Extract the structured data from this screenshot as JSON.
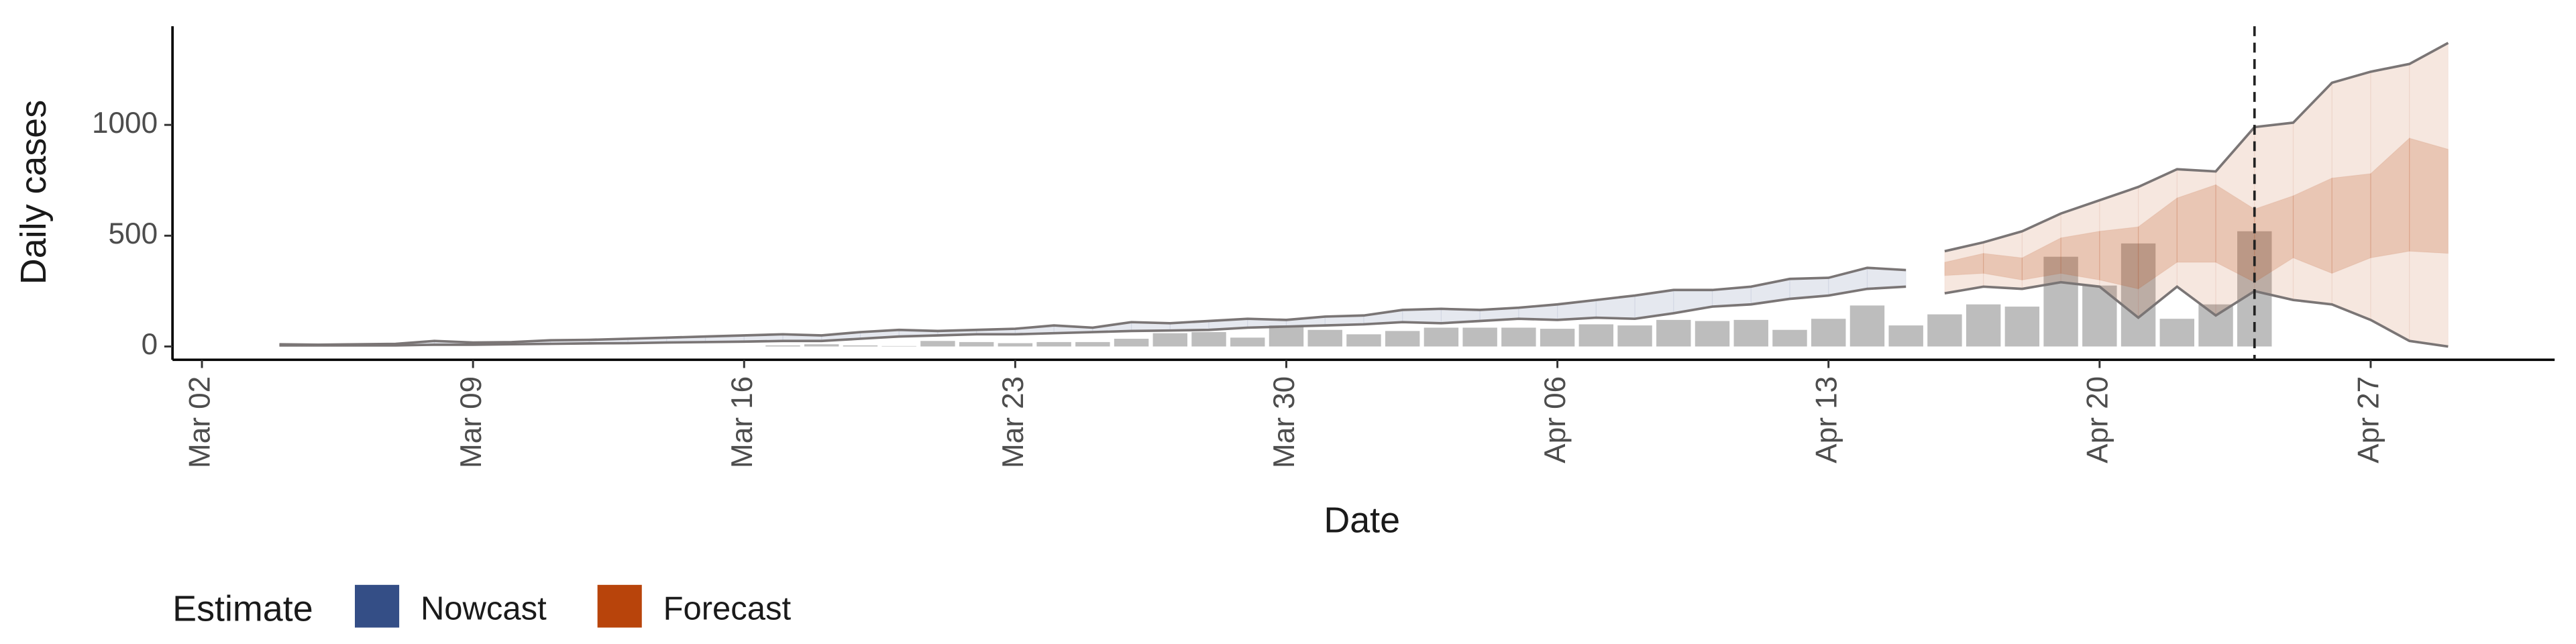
{
  "chart_data": {
    "type": "nowcast",
    "x_label": "Date",
    "y_label": "Daily cases",
    "legend_title": "Estimate",
    "dates": [
      "Mar 02",
      "Mar 03",
      "Mar 04",
      "Mar 05",
      "Mar 06",
      "Mar 07",
      "Mar 08",
      "Mar 09",
      "Mar 10",
      "Mar 11",
      "Mar 12",
      "Mar 13",
      "Mar 14",
      "Mar 15",
      "Mar 16",
      "Mar 17",
      "Mar 18",
      "Mar 19",
      "Mar 20",
      "Mar 21",
      "Mar 22",
      "Mar 23",
      "Mar 24",
      "Mar 25",
      "Mar 26",
      "Mar 27",
      "Mar 28",
      "Mar 29",
      "Mar 30",
      "Mar 31",
      "Apr 01",
      "Apr 02",
      "Apr 03",
      "Apr 04",
      "Apr 05",
      "Apr 06",
      "Apr 07",
      "Apr 08",
      "Apr 09",
      "Apr 10",
      "Apr 11",
      "Apr 12",
      "Apr 13",
      "Apr 14",
      "Apr 15",
      "Apr 16",
      "Apr 17",
      "Apr 18",
      "Apr 19",
      "Apr 20",
      "Apr 21",
      "Apr 22",
      "Apr 23",
      "Apr 24",
      "Apr 25",
      "Apr 26",
      "Apr 27",
      "Apr 28",
      "Apr 29"
    ],
    "xticks": [
      "Mar 02",
      "Mar 09",
      "Mar 16",
      "Mar 23",
      "Mar 30",
      "Apr 06",
      "Apr 13",
      "Apr 20",
      "Apr 27"
    ],
    "ylim": [
      -60,
      1445
    ],
    "yticks": [
      0,
      500,
      1000
    ],
    "vline": "Apr 24",
    "cases": {
      "color": "#bdbdbd",
      "values": [
        null,
        null,
        null,
        null,
        null,
        null,
        null,
        null,
        null,
        null,
        null,
        null,
        null,
        null,
        null,
        5,
        10,
        5,
        2,
        25,
        20,
        15,
        20,
        20,
        35,
        60,
        65,
        40,
        95,
        75,
        55,
        70,
        85,
        85,
        85,
        80,
        100,
        95,
        120,
        115,
        120,
        75,
        125,
        185,
        95,
        145,
        190,
        180,
        405,
        275,
        465,
        125,
        190,
        520,
        null,
        null,
        null,
        null,
        null
      ]
    },
    "series": [
      {
        "name": "Nowcast",
        "color": "#344e86",
        "lower_90": [
          null,
          null,
          5,
          5,
          5,
          5,
          8,
          8,
          10,
          12,
          14,
          15,
          18,
          20,
          22,
          25,
          25,
          35,
          45,
          50,
          55,
          55,
          60,
          65,
          70,
          72,
          75,
          85,
          90,
          95,
          100,
          110,
          105,
          115,
          125,
          120,
          130,
          125,
          150,
          180,
          190,
          215,
          230,
          260,
          270,
          null,
          null,
          null,
          null,
          null,
          null,
          null,
          null,
          null,
          null,
          null,
          null,
          null,
          null
        ],
        "upper_90": [
          null,
          null,
          10,
          8,
          10,
          12,
          25,
          18,
          20,
          28,
          30,
          35,
          40,
          45,
          50,
          55,
          50,
          65,
          75,
          70,
          75,
          80,
          95,
          85,
          110,
          105,
          115,
          125,
          120,
          135,
          140,
          165,
          170,
          165,
          175,
          190,
          210,
          230,
          255,
          255,
          270,
          305,
          310,
          355,
          345,
          null,
          null,
          null,
          null,
          null,
          null,
          null,
          null,
          null,
          null,
          null,
          null,
          null,
          null
        ]
      },
      {
        "name": "Forecast",
        "color": "#b8440b",
        "lower_90": [
          null,
          null,
          null,
          null,
          null,
          null,
          null,
          null,
          null,
          null,
          null,
          null,
          null,
          null,
          null,
          null,
          null,
          null,
          null,
          null,
          null,
          null,
          null,
          null,
          null,
          null,
          null,
          null,
          null,
          null,
          null,
          null,
          null,
          null,
          null,
          null,
          null,
          null,
          null,
          null,
          null,
          null,
          null,
          null,
          null,
          240,
          270,
          260,
          290,
          270,
          130,
          270,
          140,
          250,
          210,
          190,
          120,
          25,
          0
        ],
        "upper_90": [
          null,
          null,
          null,
          null,
          null,
          null,
          null,
          null,
          null,
          null,
          null,
          null,
          null,
          null,
          null,
          null,
          null,
          null,
          null,
          null,
          null,
          null,
          null,
          null,
          null,
          null,
          null,
          null,
          null,
          null,
          null,
          null,
          null,
          null,
          null,
          null,
          null,
          null,
          null,
          null,
          null,
          null,
          null,
          null,
          null,
          430,
          470,
          520,
          600,
          660,
          720,
          800,
          790,
          990,
          1010,
          1190,
          1240,
          1275,
          1370
        ],
        "lower_50": [
          null,
          null,
          null,
          null,
          null,
          null,
          null,
          null,
          null,
          null,
          null,
          null,
          null,
          null,
          null,
          null,
          null,
          null,
          null,
          null,
          null,
          null,
          null,
          null,
          null,
          null,
          null,
          null,
          null,
          null,
          null,
          null,
          null,
          null,
          null,
          null,
          null,
          null,
          null,
          null,
          null,
          null,
          null,
          null,
          null,
          320,
          330,
          300,
          330,
          300,
          260,
          380,
          380,
          290,
          400,
          330,
          400,
          430,
          420
        ],
        "upper_50": [
          null,
          null,
          null,
          null,
          null,
          null,
          null,
          null,
          null,
          null,
          null,
          null,
          null,
          null,
          null,
          null,
          null,
          null,
          null,
          null,
          null,
          null,
          null,
          null,
          null,
          null,
          null,
          null,
          null,
          null,
          null,
          null,
          null,
          null,
          null,
          null,
          null,
          null,
          null,
          null,
          null,
          null,
          null,
          null,
          null,
          380,
          420,
          400,
          490,
          520,
          540,
          670,
          730,
          620,
          680,
          760,
          780,
          940,
          890
        ]
      }
    ]
  }
}
